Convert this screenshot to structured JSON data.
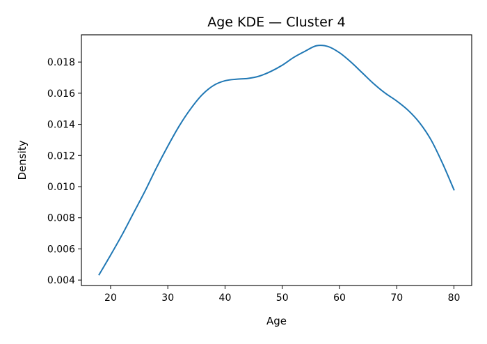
{
  "colors": {
    "background": "#ffffff",
    "axis": "#000000",
    "series_line": "#1f77b4"
  },
  "chart_data": {
    "type": "line",
    "title": "Age KDE — Cluster 4",
    "xlabel": "Age",
    "ylabel": "Density",
    "xlim": [
      14.9,
      83.1
    ],
    "ylim": [
      0.00365,
      0.01975
    ],
    "grid": false,
    "legend": "none",
    "x_ticks": [
      20,
      30,
      40,
      50,
      60,
      70,
      80
    ],
    "y_ticks": [
      0.004,
      0.006,
      0.008,
      0.01,
      0.012,
      0.014,
      0.016,
      0.018
    ],
    "x_tick_labels": [
      "20",
      "30",
      "40",
      "50",
      "60",
      "70",
      "80"
    ],
    "y_tick_labels": [
      "0.004",
      "0.006",
      "0.008",
      "0.010",
      "0.012",
      "0.014",
      "0.016",
      "0.018"
    ],
    "series": [
      {
        "color": "#1f77b4",
        "points": [
          [
            18,
            0.00435
          ],
          [
            20,
            0.0056
          ],
          [
            22,
            0.0069
          ],
          [
            24,
            0.0083
          ],
          [
            26,
            0.0097
          ],
          [
            28,
            0.0112
          ],
          [
            30,
            0.0126
          ],
          [
            32,
            0.0139
          ],
          [
            34,
            0.015
          ],
          [
            36,
            0.0159
          ],
          [
            38,
            0.0165
          ],
          [
            40,
            0.0168
          ],
          [
            42,
            0.0169
          ],
          [
            44,
            0.01695
          ],
          [
            46,
            0.0171
          ],
          [
            48,
            0.0174
          ],
          [
            50,
            0.0178
          ],
          [
            52,
            0.0183
          ],
          [
            54,
            0.0187
          ],
          [
            56,
            0.01905
          ],
          [
            58,
            0.019
          ],
          [
            60,
            0.0186
          ],
          [
            62,
            0.018
          ],
          [
            64,
            0.0173
          ],
          [
            66,
            0.0166
          ],
          [
            68,
            0.016
          ],
          [
            70,
            0.0155
          ],
          [
            72,
            0.0149
          ],
          [
            74,
            0.0141
          ],
          [
            76,
            0.013
          ],
          [
            78,
            0.0115
          ],
          [
            80,
            0.0098
          ]
        ]
      }
    ]
  }
}
